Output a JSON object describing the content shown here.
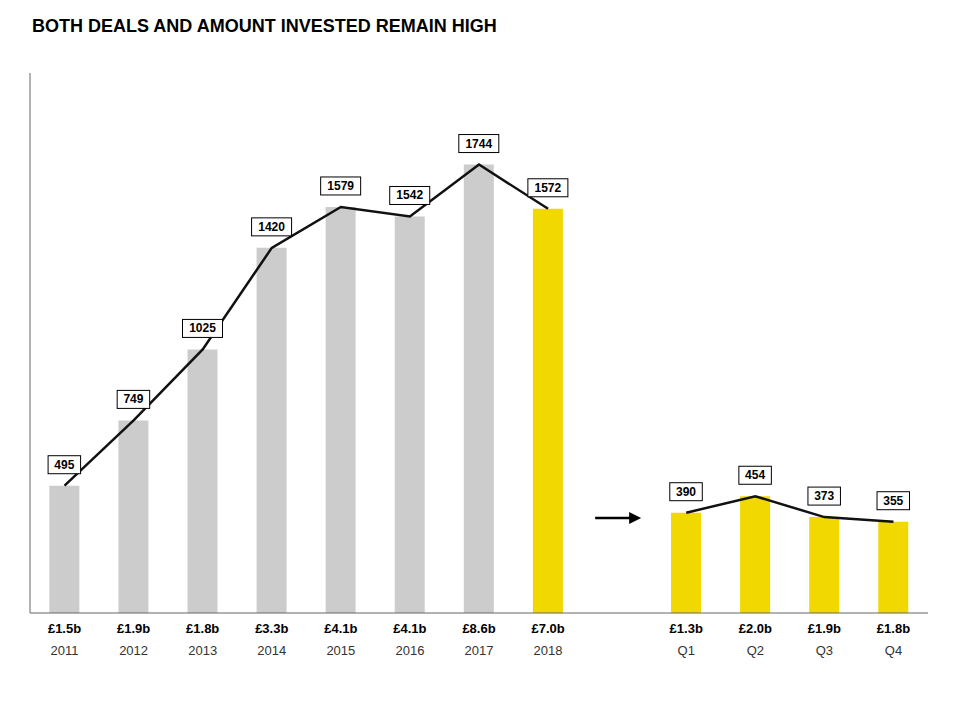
{
  "chart_data": {
    "type": "bar",
    "title": "BOTH DEALS AND AMOUNT INVESTED REMAIN HIGH",
    "categories": [
      "2011",
      "2012",
      "2013",
      "2014",
      "2015",
      "2016",
      "2017",
      "2018",
      null,
      "Q1",
      "Q2",
      "Q3",
      "Q4"
    ],
    "annotations": [
      "£1.5b",
      "£1.9b",
      "£1.8b",
      "£3.3b",
      "£4.1b",
      "£4.1b",
      "£8.6b",
      "£7.0b",
      null,
      "£1.3b",
      "£2.0b",
      "£1.9b",
      "£1.8b"
    ],
    "series": [
      {
        "type": "bar",
        "colors": [
          "#cccccc",
          "#cccccc",
          "#cccccc",
          "#cccccc",
          "#cccccc",
          "#cccccc",
          "#cccccc",
          "#f0d800",
          "#e8e8e8",
          "#f0d800",
          "#f0d800",
          "#f0d800",
          "#f0d800"
        ],
        "values": [
          495,
          749,
          1025,
          1420,
          1579,
          1542,
          1744,
          1572,
          null,
          390,
          454,
          373,
          355
        ]
      },
      {
        "type": "line",
        "color": "#111111",
        "values": [
          495,
          749,
          1025,
          1420,
          1579,
          1542,
          1744,
          1572,
          null,
          390,
          454,
          373,
          355
        ]
      }
    ],
    "ylim": [
      0,
      2100
    ],
    "data_labels": true,
    "tick_labels": "x"
  }
}
